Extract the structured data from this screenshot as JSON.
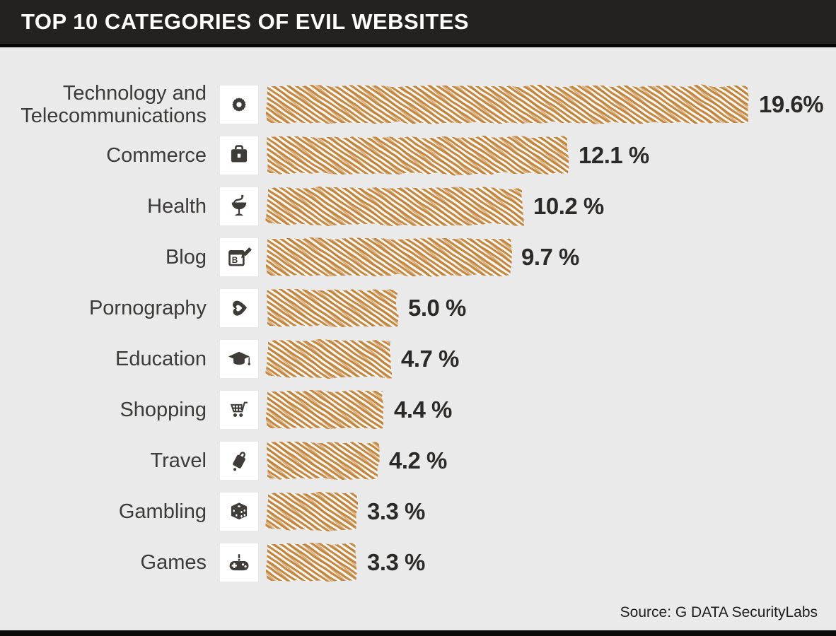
{
  "header": {
    "title": "TOP 10 CATEGORIES OF EVIL WEBSITES"
  },
  "footer": {
    "source": "Source: G DATA SecurityLabs"
  },
  "colors": {
    "header_bg": "#242220",
    "page_bg": "#eaeaea",
    "bar_hatch": "#c5863e",
    "bar_hatch_dark": "#b97b31",
    "icon_fg": "#3f3c38",
    "icon_bg": "#ffffff",
    "label_text": "#3c3b39",
    "value_text": "#2b2a28"
  },
  "chart_data": {
    "type": "bar",
    "orientation": "horizontal",
    "style": "hand-drawn hatch bars",
    "title": "TOP 10 CATEGORIES OF EVIL WEBSITES",
    "categories": [
      "Technology and Telecommunications",
      "Commerce",
      "Health",
      "Blog",
      "Pornography",
      "Education",
      "Shopping",
      "Travel",
      "Gambling",
      "Games"
    ],
    "values": [
      19.6,
      12.1,
      10.2,
      9.7,
      5.0,
      4.7,
      4.4,
      4.2,
      3.3,
      3.3
    ],
    "value_labels": [
      "19.6%",
      "12.1 %",
      "10.2 %",
      "9.7 %",
      "5.0 %",
      "4.7 %",
      "4.4 %",
      "4.2 %",
      "3.3 %",
      "3.3 %"
    ],
    "icons": [
      "gear-icon",
      "briefcase-icon",
      "pharmacy-icon",
      "blog-icon",
      "lips-heart-icon",
      "graduation-cap-icon",
      "shopping-cart-icon",
      "suitcase-icon",
      "dice-icon",
      "gamepad-icon"
    ],
    "xlim": [
      0,
      20
    ],
    "grid": false,
    "legend": false,
    "source": "G DATA SecurityLabs"
  }
}
